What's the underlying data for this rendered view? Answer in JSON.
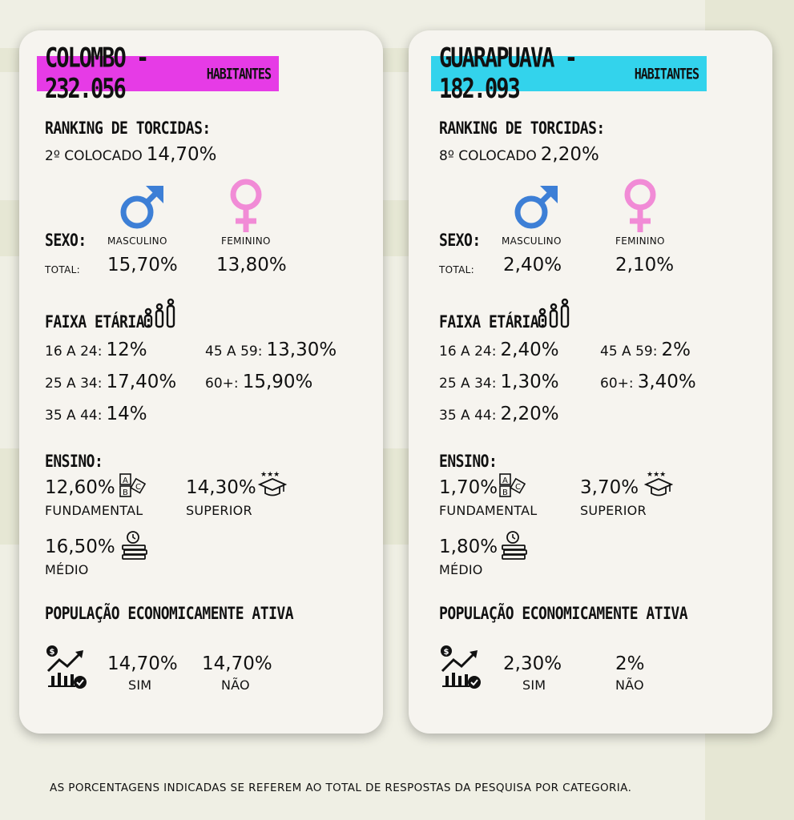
{
  "cities": [
    {
      "title_main": "COLOMBO - 232.056",
      "title_suffix": "HABITANTES",
      "accent": "#e63be6",
      "ranking_heading": "RANKING DE TORCIDAS:",
      "ranking_place": "2º COLOCADO",
      "ranking_value": "14,70%",
      "sex_heading": "SEXO:",
      "male_label": "MASCULINO",
      "female_label": "FEMININO",
      "total_label": "TOTAL:",
      "male_value": "15,70%",
      "female_value": "13,80%",
      "age_heading": "FAIXA ETÁRIA:",
      "age": [
        {
          "label": "16 A 24:",
          "value": "12%"
        },
        {
          "label": "45 A 59:",
          "value": "13,30%"
        },
        {
          "label": "25 A 34:",
          "value": "17,40%"
        },
        {
          "label": "60+:",
          "value": "15,90%"
        },
        {
          "label": "35 A 44:",
          "value": "14%"
        }
      ],
      "edu_heading": "ENSINO:",
      "edu": [
        {
          "value": "12,60%",
          "label": "FUNDAMENTAL"
        },
        {
          "value": "14,30%",
          "label": "SUPERIOR"
        },
        {
          "value": "16,50%",
          "label": "MÉDIO"
        }
      ],
      "pea_heading": "POPULAÇÃO ECONOMICAMENTE ATIVA",
      "pea": [
        {
          "value": "14,70%",
          "label": "SIM"
        },
        {
          "value": "14,70%",
          "label": "NÃO"
        }
      ]
    },
    {
      "title_main": "GUARAPUAVA - 182.093",
      "title_suffix": "HABITANTES",
      "accent": "#33d3ec",
      "ranking_heading": "RANKING DE TORCIDAS:",
      "ranking_place": "8º COLOCADO",
      "ranking_value": "2,20%",
      "sex_heading": "SEXO:",
      "male_label": "MASCULINO",
      "female_label": "FEMININO",
      "total_label": "TOTAL:",
      "male_value": "2,40%",
      "female_value": "2,10%",
      "age_heading": "FAIXA ETÁRIA:",
      "age": [
        {
          "label": "16 A 24:",
          "value": "2,40%"
        },
        {
          "label": "45 A 59:",
          "value": "2%"
        },
        {
          "label": "25 A 34:",
          "value": "1,30%"
        },
        {
          "label": "60+:",
          "value": "3,40%"
        },
        {
          "label": "35 A 44:",
          "value": "2,20%"
        }
      ],
      "edu_heading": "ENSINO:",
      "edu": [
        {
          "value": "1,70%",
          "label": "FUNDAMENTAL"
        },
        {
          "value": "3,70%",
          "label": "SUPERIOR"
        },
        {
          "value": "1,80%",
          "label": "MÉDIO"
        }
      ],
      "pea_heading": "POPULAÇÃO ECONOMICAMENTE ATIVA",
      "pea": [
        {
          "value": "2,30%",
          "label": "SIM"
        },
        {
          "value": "2%",
          "label": "NÃO"
        }
      ]
    }
  ],
  "colors": {
    "male": "#3d7fd6",
    "female": "#f18bd6",
    "page_bg": "#efefe4",
    "card_bg": "#f6f4ef"
  },
  "icons": [
    "male-symbol-icon",
    "female-symbol-icon",
    "people-icon",
    "abc-blocks-icon",
    "graduation-cap-icon",
    "books-clock-icon",
    "money-growth-chart-icon"
  ],
  "footer": "AS PORCENTAGENS INDICADAS SE REFEREM AO TOTAL DE RESPOSTAS DA PESQUISA POR CATEGORIA."
}
